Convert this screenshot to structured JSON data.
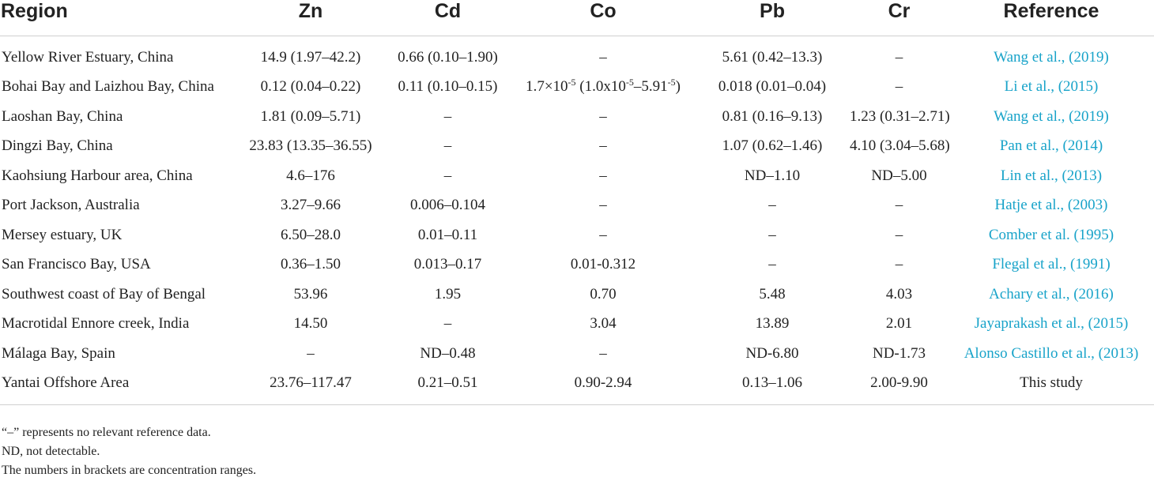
{
  "table": {
    "headers": {
      "region": "Region",
      "zn": "Zn",
      "cd": "Cd",
      "co": "Co",
      "pb": "Pb",
      "cr": "Cr",
      "reference": "Reference"
    },
    "rows": [
      {
        "region": "Yellow River Estuary, China",
        "zn": "14.9 (1.97–42.2)",
        "cd": "0.66 (0.10–1.90)",
        "co": "–",
        "pb": "5.61 (0.42–13.3)",
        "cr": "–",
        "reference": "Wang et al., (2019)"
      },
      {
        "region": "Bohai Bay and Laizhou Bay, China",
        "zn": "0.12 (0.04–0.22)",
        "cd": "0.11 (0.10–0.15)",
        "co_parts": [
          "1.7×10",
          "-5",
          " (1.0x10",
          "-5",
          "–5.91",
          "-5",
          ")"
        ],
        "pb": "0.018 (0.01–0.04)",
        "cr": "–",
        "reference": "Li et al., (2015)"
      },
      {
        "region": "Laoshan Bay, China",
        "zn": "1.81 (0.09–5.71)",
        "cd": "–",
        "co": "–",
        "pb": "0.81 (0.16–9.13)",
        "cr": "1.23 (0.31–2.71)",
        "reference": "Wang et al., (2019)"
      },
      {
        "region": "Dingzi Bay, China",
        "zn": "23.83 (13.35–36.55)",
        "cd": "–",
        "co": "–",
        "pb": "1.07 (0.62–1.46)",
        "cr": "4.10 (3.04–5.68)",
        "reference": "Pan et al., (2014)"
      },
      {
        "region": "Kaohsiung Harbour area, China",
        "zn": "4.6–176",
        "cd": "–",
        "co": "–",
        "pb": "ND–1.10",
        "cr": "ND–5.00",
        "reference": "Lin et al., (2013)"
      },
      {
        "region": "Port Jackson, Australia",
        "zn": "3.27–9.66",
        "cd": "0.006–0.104",
        "co": "–",
        "pb": "–",
        "cr": "–",
        "reference": "Hatje et al., (2003)"
      },
      {
        "region": "Mersey estuary, UK",
        "zn": "6.50–28.0",
        "cd": "0.01–0.11",
        "co": "–",
        "pb": "–",
        "cr": "–",
        "reference": "Comber et al. (1995)"
      },
      {
        "region": "San Francisco Bay, USA",
        "zn": "0.36–1.50",
        "cd": "0.013–0.17",
        "co": "0.01-0.312",
        "pb": "–",
        "cr": "–",
        "reference": "Flegal et al., (1991)"
      },
      {
        "region": "Southwest coast of Bay of Bengal",
        "zn": "53.96",
        "cd": "1.95",
        "co": "0.70",
        "pb": "5.48",
        "cr": "4.03",
        "reference": "Achary et al., (2016)"
      },
      {
        "region": "Macrotidal Ennore creek, India",
        "zn": "14.50",
        "cd": "–",
        "co": "3.04",
        "pb": "13.89",
        "cr": "2.01",
        "reference": "Jayaprakash et al., (2015)"
      },
      {
        "region": "Málaga Bay, Spain",
        "zn": "–",
        "cd": "ND–0.48",
        "co": "–",
        "pb": "ND-6.80",
        "cr": "ND-1.73",
        "reference": "Alonso Castillo et al., (2013)"
      },
      {
        "region": "Yantai Offshore Area",
        "zn": "23.76–117.47",
        "cd": "0.21–0.51",
        "co": "0.90-2.94",
        "pb": "0.13–1.06",
        "cr": "2.00-9.90",
        "reference": "This study"
      }
    ]
  },
  "notes": [
    "“–” represents no relevant reference data.",
    "ND, not detectable.",
    "The numbers in brackets are concentration ranges."
  ],
  "colors": {
    "text": "#222222",
    "link": "#18a3c9",
    "rule": "#cfcfcf"
  }
}
